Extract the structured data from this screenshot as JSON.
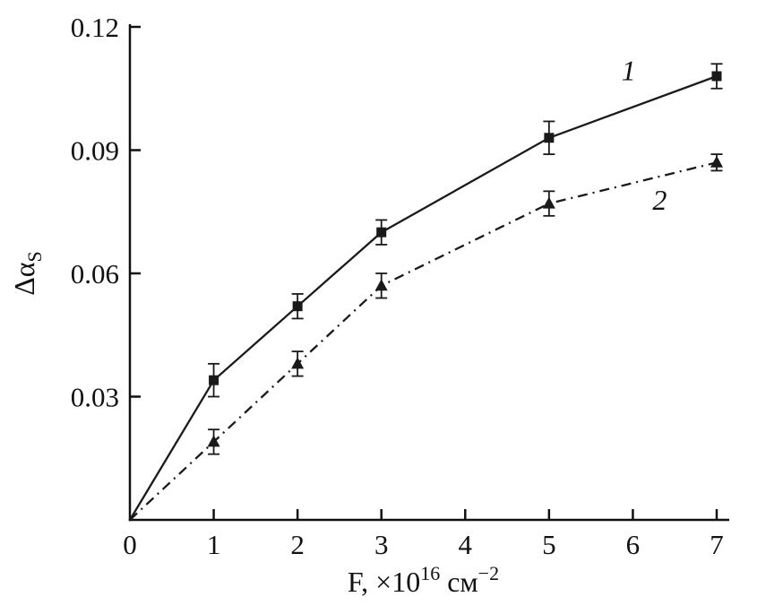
{
  "chart_data": {
    "type": "line",
    "x": [
      0,
      1,
      2,
      3,
      5,
      7
    ],
    "series": [
      {
        "name": "1",
        "values": [
          0,
          0.034,
          0.052,
          0.07,
          0.093,
          0.108
        ],
        "errors": [
          null,
          0.004,
          0.003,
          0.003,
          0.004,
          0.003
        ],
        "marker": "square",
        "line_style": "solid",
        "color": "#1a1a1a",
        "label_text": "1",
        "label_x": 5.95,
        "label_y": 0.107
      },
      {
        "name": "2",
        "values": [
          0,
          0.019,
          0.038,
          0.057,
          0.077,
          0.087
        ],
        "errors": [
          null,
          0.003,
          0.003,
          0.003,
          0.003,
          0.002
        ],
        "marker": "triangle",
        "line_style": "dash-dot",
        "color": "#1a1a1a",
        "label_text": "2",
        "label_x": 6.32,
        "label_y": 0.0755
      }
    ],
    "xlim": [
      0,
      7
    ],
    "ylim": [
      0,
      0.12
    ],
    "x_ticks": [
      0,
      1,
      2,
      3,
      4,
      5,
      6,
      7
    ],
    "x_tick_labels": [
      "0",
      "1",
      "2",
      "3",
      "4",
      "5",
      "6",
      "7"
    ],
    "y_ticks": [
      0.03,
      0.06,
      0.09,
      0.12
    ],
    "y_tick_labels": [
      "0.03",
      "0.06",
      "0.09",
      "0.12"
    ],
    "xlabel_parts": [
      {
        "text": "F, ×10",
        "style": "normal"
      },
      {
        "text": "16",
        "style": "sup"
      },
      {
        "text": " см",
        "style": "normal"
      },
      {
        "text": "−2",
        "style": "sup"
      }
    ],
    "ylabel_parts": [
      {
        "text": "Δα",
        "style": "normal"
      },
      {
        "text": "S",
        "style": "sub"
      }
    ],
    "grid": false,
    "legend_position": "inline-labels",
    "axis_color": "#111111"
  }
}
